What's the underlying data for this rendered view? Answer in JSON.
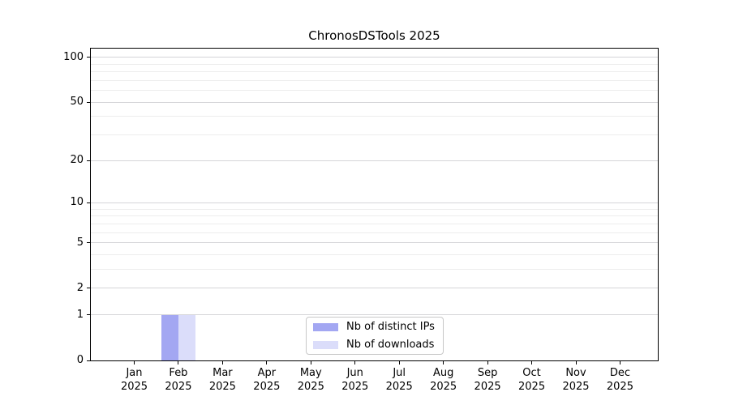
{
  "title": "ChronosDSTools 2025",
  "legend": {
    "items": [
      {
        "label": "Nb of distinct IPs",
        "color": "#a3a7f2"
      },
      {
        "label": "Nb of downloads",
        "color": "#dbddfa"
      }
    ]
  },
  "axes": {
    "y_tick_labels": [
      "100",
      "50",
      "20",
      "10",
      "5",
      "2",
      "1",
      "0"
    ],
    "x_tick_labels": [
      {
        "month": "Jan",
        "year": "2025"
      },
      {
        "month": "Feb",
        "year": "2025"
      },
      {
        "month": "Mar",
        "year": "2025"
      },
      {
        "month": "Apr",
        "year": "2025"
      },
      {
        "month": "May",
        "year": "2025"
      },
      {
        "month": "Jun",
        "year": "2025"
      },
      {
        "month": "Jul",
        "year": "2025"
      },
      {
        "month": "Aug",
        "year": "2025"
      },
      {
        "month": "Sep",
        "year": "2025"
      },
      {
        "month": "Oct",
        "year": "2025"
      },
      {
        "month": "Nov",
        "year": "2025"
      },
      {
        "month": "Dec",
        "year": "2025"
      }
    ]
  },
  "chart_data": {
    "type": "bar",
    "title": "ChronosDSTools 2025",
    "categories": [
      "Jan 2025",
      "Feb 2025",
      "Mar 2025",
      "Apr 2025",
      "May 2025",
      "Jun 2025",
      "Jul 2025",
      "Aug 2025",
      "Sep 2025",
      "Oct 2025",
      "Nov 2025",
      "Dec 2025"
    ],
    "series": [
      {
        "name": "Nb of distinct IPs",
        "color": "#a3a7f2",
        "values": [
          0,
          1,
          0,
          0,
          0,
          0,
          0,
          0,
          0,
          0,
          0,
          0
        ]
      },
      {
        "name": "Nb of downloads",
        "color": "#dbddfa",
        "values": [
          0,
          1,
          0,
          0,
          0,
          0,
          0,
          0,
          0,
          0,
          0,
          0
        ]
      }
    ],
    "xlabel": "",
    "ylabel": "",
    "y_scale": "log(1+x)",
    "ylim": [
      0,
      113
    ],
    "y_ticks_top_to_bottom": [
      100,
      50,
      20,
      10,
      5,
      2,
      1,
      0
    ],
    "y_gridlines_major": [
      100,
      50,
      20,
      10,
      5,
      2,
      1
    ],
    "y_gridlines_minor": [
      90,
      80,
      70,
      60,
      40,
      30,
      9,
      8,
      7,
      6,
      4,
      3
    ],
    "grid": "horizontal",
    "legend_position": "lower center"
  }
}
